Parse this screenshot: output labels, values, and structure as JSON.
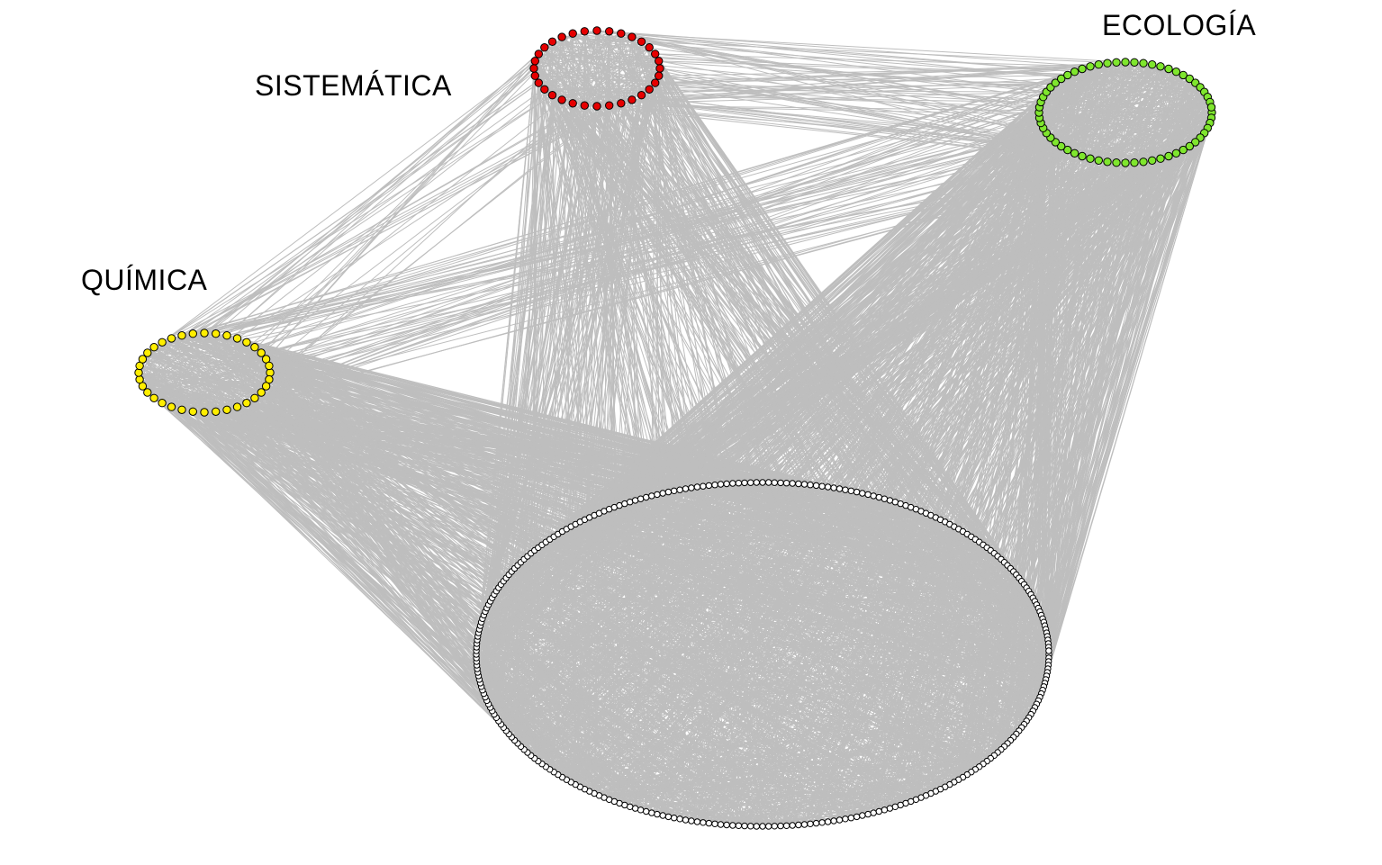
{
  "clusters": [
    {
      "id": "sistematica",
      "label": "SISTEMÁTICA",
      "color": "#e60000",
      "node_count": 32
    },
    {
      "id": "ecologia",
      "label": "ECOLOGÍA",
      "color": "#7fe62e",
      "node_count": 60
    },
    {
      "id": "quimica",
      "label": "QUÍMICA",
      "color": "#ffee00",
      "node_count": 36
    },
    {
      "id": "core",
      "label": "",
      "color": "#ffffff",
      "node_count": 300
    }
  ],
  "style": {
    "edge_color": "#bebebe",
    "node_stroke": "#000000",
    "background": "#ffffff"
  }
}
